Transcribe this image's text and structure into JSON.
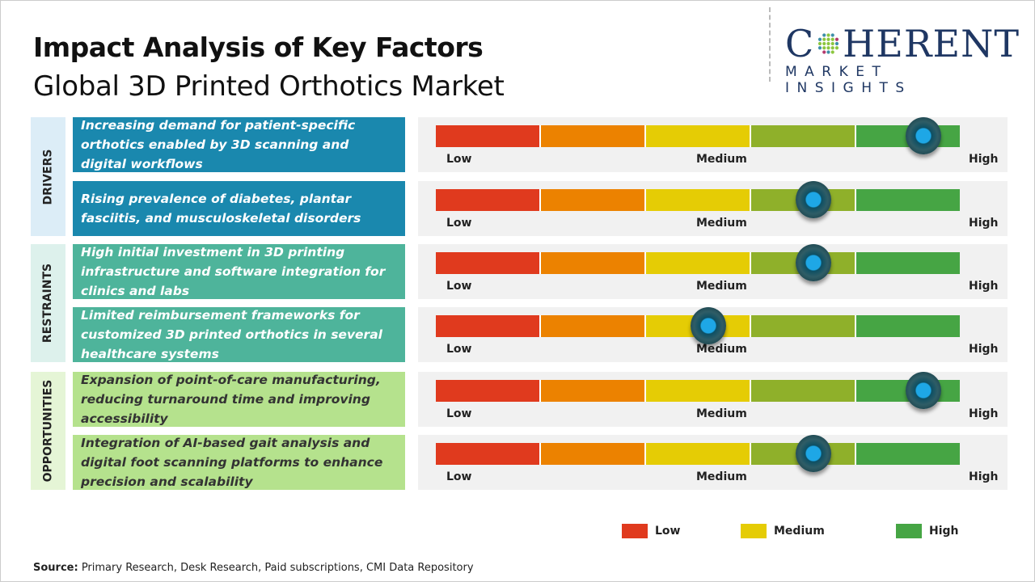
{
  "header": {
    "title": "Impact Analysis of Key Factors",
    "subtitle": "Global 3D Printed Orthotics Market"
  },
  "logo": {
    "big_c": "C",
    "big_rest": "HERENT",
    "small": "MARKET INSIGHTS"
  },
  "scale_labels": {
    "low": "Low",
    "medium": "Medium",
    "high": "High"
  },
  "segment_colors": [
    "#e03a1e",
    "#ec8200",
    "#e5cc05",
    "#8fb02a",
    "#46a544"
  ],
  "categories": [
    {
      "label": "DRIVERS",
      "label_bg": "#dcedf7",
      "box_color": "#1a88ae",
      "text_color": "#ffffff"
    },
    {
      "label": "RESTRAINTS",
      "label_bg": "#ddf1ec",
      "box_color": "#4eb49b",
      "text_color": "#ffffff"
    },
    {
      "label": "OPPORTUNITIES",
      "label_bg": "#e5f5d6",
      "box_color": "#b5e28d",
      "text_color": "#333333"
    }
  ],
  "factors": [
    {
      "category": 0,
      "text": "Increasing demand for patient-specific orthotics enabled by 3D scanning and digital workflows",
      "impact": 0.93
    },
    {
      "category": 0,
      "text": "Rising prevalence of diabetes, plantar fasciitis, and musculoskeletal disorders",
      "impact": 0.72
    },
    {
      "category": 1,
      "text": "High initial investment in 3D printing infrastructure and software integration for clinics and labs",
      "impact": 0.72
    },
    {
      "category": 1,
      "text": "Limited reimbursement frameworks for customized 3D printed orthotics in several healthcare systems",
      "impact": 0.52
    },
    {
      "category": 2,
      "text": "Expansion of point-of-care manufacturing, reducing turnaround time and improving accessibility",
      "impact": 0.93
    },
    {
      "category": 2,
      "text": "Integration of AI-based gait analysis and digital foot scanning platforms to enhance precision and scalability",
      "impact": 0.72
    }
  ],
  "legend": [
    {
      "label": "Low",
      "color": "#e03a1e"
    },
    {
      "label": "Medium",
      "color": "#e5cc05"
    },
    {
      "label": "High",
      "color": "#46a544"
    }
  ],
  "source": {
    "label": "Source:",
    "text": " Primary Research, Desk Research, Paid subscriptions, CMI Data Repository"
  }
}
